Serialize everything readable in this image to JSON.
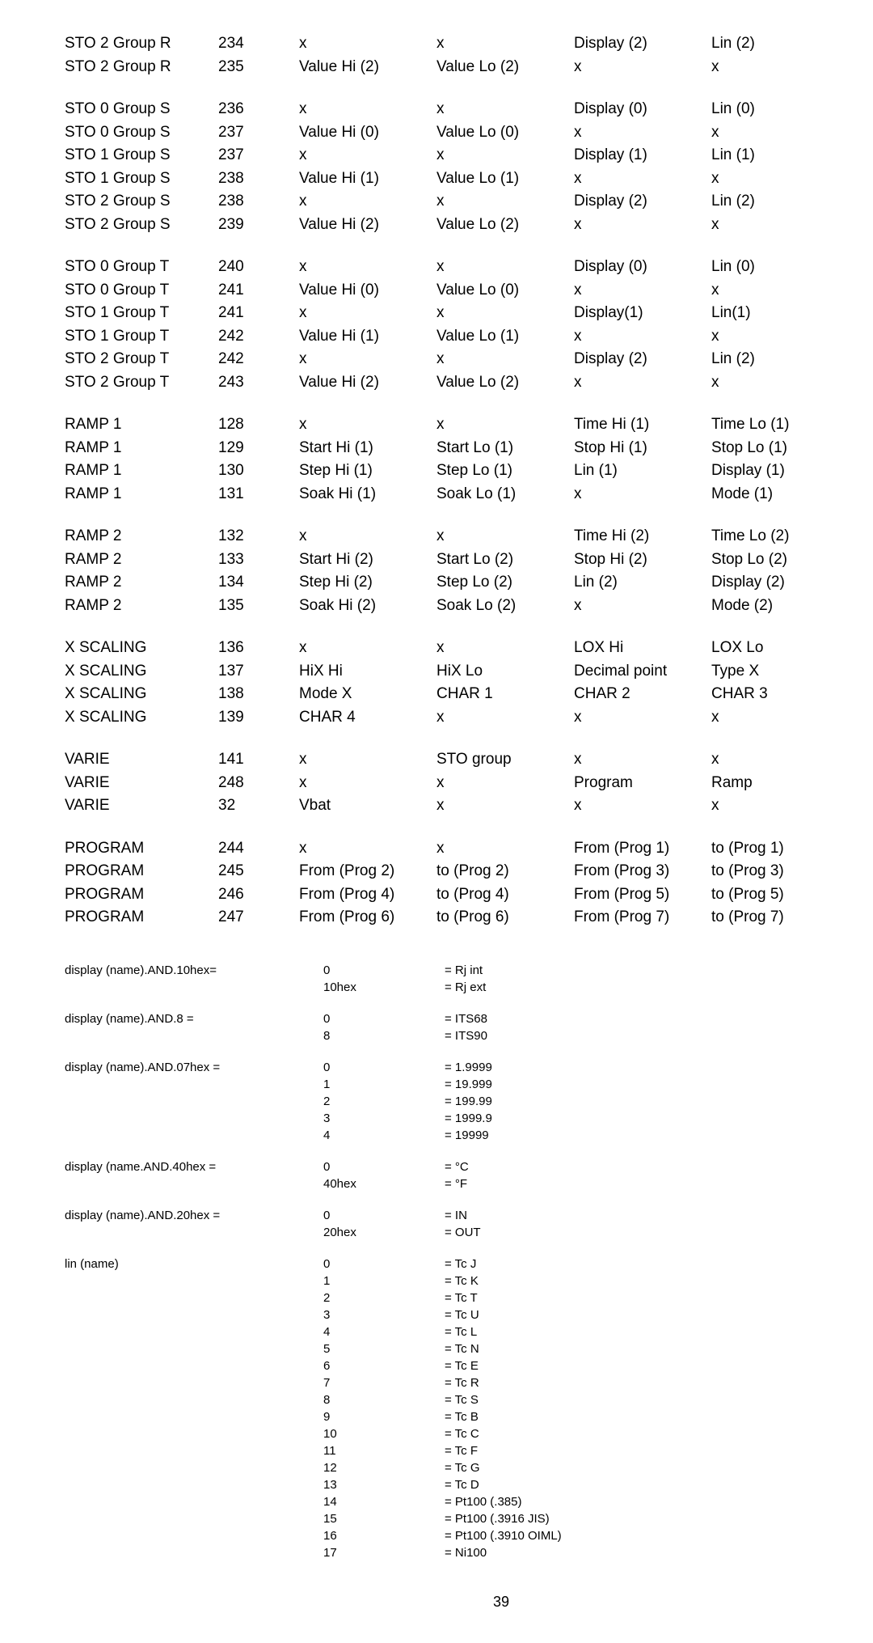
{
  "blocks": [
    [
      [
        "STO 2 Group R",
        "234",
        "x",
        "x",
        "Display (2)",
        "Lin (2)"
      ],
      [
        "STO 2 Group R",
        "235",
        "Value Hi (2)",
        "Value Lo (2)",
        "x",
        "x"
      ]
    ],
    [
      [
        "STO 0 Group S",
        "236",
        "x",
        "x",
        "Display (0)",
        "Lin (0)"
      ],
      [
        "STO 0 Group S",
        "237",
        "Value Hi (0)",
        "Value Lo (0)",
        "x",
        "x"
      ],
      [
        "STO 1 Group S",
        "237",
        "x",
        "x",
        "Display (1)",
        "Lin (1)"
      ],
      [
        "STO 1 Group S",
        "238",
        "Value Hi (1)",
        "Value Lo (1)",
        "x",
        "x"
      ],
      [
        "STO 2 Group S",
        "238",
        "x",
        "x",
        "Display (2)",
        "Lin (2)"
      ],
      [
        "STO 2 Group S",
        "239",
        "Value Hi (2)",
        "Value Lo (2)",
        "x",
        "x"
      ]
    ],
    [
      [
        "STO 0 Group T",
        "240",
        "x",
        "x",
        "Display (0)",
        "Lin (0)"
      ],
      [
        "STO 0 Group T",
        "241",
        "Value Hi (0)",
        "Value Lo (0)",
        "x",
        "x"
      ],
      [
        "STO 1 Group T",
        "241",
        "x",
        "x",
        "Display(1)",
        "Lin(1)"
      ],
      [
        "STO 1 Group T",
        "242",
        "Value Hi (1)",
        "Value Lo (1)",
        "x",
        "x"
      ],
      [
        "STO 2 Group T",
        "242",
        "x",
        "x",
        "Display (2)",
        "Lin (2)"
      ],
      [
        "STO 2 Group T",
        "243",
        "Value Hi (2)",
        "Value Lo (2)",
        "x",
        "x"
      ]
    ],
    [
      [
        "RAMP 1",
        "128",
        "x",
        "x",
        "Time Hi (1)",
        "Time Lo (1)"
      ],
      [
        "RAMP 1",
        "129",
        "Start Hi (1)",
        "Start  Lo (1)",
        "Stop Hi (1)",
        "Stop Lo (1)"
      ],
      [
        "RAMP 1",
        "130",
        "Step Hi (1)",
        "Step Lo (1)",
        "Lin (1)",
        "Display (1)"
      ],
      [
        "RAMP 1",
        "131",
        "Soak Hi (1)",
        "Soak Lo (1)",
        "x",
        "Mode (1)"
      ]
    ],
    [
      [
        "RAMP 2",
        "132",
        "x",
        "x",
        "Time Hi (2)",
        "Time Lo (2)"
      ],
      [
        "RAMP 2",
        "133",
        "Start Hi (2)",
        "Start Lo (2)",
        "Stop Hi (2)",
        "Stop Lo (2)"
      ],
      [
        "RAMP 2",
        "134",
        "Step Hi (2)",
        "Step Lo (2)",
        "Lin (2)",
        "Display (2)"
      ],
      [
        "RAMP 2",
        "135",
        "Soak Hi (2)",
        "Soak Lo (2)",
        "x",
        "Mode (2)"
      ]
    ],
    [
      [
        "X SCALING",
        "136",
        "x",
        "x",
        "LOX Hi",
        "LOX Lo"
      ],
      [
        "X SCALING",
        "137",
        "HiX Hi",
        "HiX Lo",
        "Decimal point",
        "Type X"
      ],
      [
        "X SCALING",
        "138",
        "Mode X",
        "CHAR 1",
        "CHAR 2",
        "CHAR 3"
      ],
      [
        "X SCALING",
        "139",
        "CHAR 4",
        "x",
        "x",
        "x"
      ]
    ],
    [
      [
        "VARIE",
        "141",
        "x",
        "STO group",
        "x",
        "x"
      ],
      [
        "VARIE",
        "248",
        "x",
        "x",
        "Program",
        "Ramp"
      ],
      [
        "VARIE",
        "32",
        "Vbat",
        "x",
        "x",
        "x"
      ]
    ],
    [
      [
        "PROGRAM",
        "244",
        "x",
        "x",
        "From  (Prog 1)",
        "to (Prog 1)"
      ],
      [
        "PROGRAM",
        "245",
        "From (Prog 2)",
        "to (Prog 2)",
        "From  (Prog 3)",
        "to (Prog 3)"
      ],
      [
        "PROGRAM",
        "246",
        "From (Prog 4)",
        "to (Prog 4)",
        "From  (Prog 5)",
        "to (Prog 5)"
      ],
      [
        "PROGRAM",
        "247",
        "From (Prog 6)",
        "to (Prog 6)",
        "From  (Prog 7)",
        "to (Prog 7)"
      ]
    ]
  ],
  "lookup": [
    {
      "label": "display (name).AND.10hex=",
      "rows": [
        [
          "0",
          "=  Rj int"
        ],
        [
          "10hex",
          "=  Rj ext"
        ]
      ]
    },
    {
      "label": "display (name).AND.8  =",
      "rows": [
        [
          "0",
          "=  ITS68"
        ],
        [
          "8",
          "=  ITS90"
        ]
      ]
    },
    {
      "label": "display (name).AND.07hex =",
      "rows": [
        [
          "0",
          "=  1.9999"
        ],
        [
          "1",
          "=  19.999"
        ],
        [
          "2",
          "=  199.99"
        ],
        [
          "3",
          "=  1999.9"
        ],
        [
          "4",
          "=  19999"
        ]
      ]
    },
    {
      "label": "display (name.AND.40hex =",
      "rows": [
        [
          "0",
          "=  °C"
        ],
        [
          "40hex",
          "=  °F"
        ]
      ]
    },
    {
      "label": "display (name).AND.20hex  =",
      "rows": [
        [
          "0",
          "=  IN"
        ],
        [
          "20hex",
          "=  OUT"
        ]
      ]
    },
    {
      "label": "lin (name)",
      "rows": [
        [
          "0",
          "=  Tc J"
        ],
        [
          "1",
          "=  Tc K"
        ],
        [
          "2",
          "=  Tc T"
        ],
        [
          "3",
          "=  Tc U"
        ],
        [
          "4",
          "=  Tc L"
        ],
        [
          "5",
          "=  Tc N"
        ],
        [
          "6",
          "=  Tc E"
        ],
        [
          "7",
          "=  Tc R"
        ],
        [
          "8",
          "=  Tc S"
        ],
        [
          "9",
          "=  Tc B"
        ],
        [
          "10",
          "=  Tc C"
        ],
        [
          "11",
          "=  Tc F"
        ],
        [
          "12",
          "=  Tc G"
        ],
        [
          "13",
          "=  Tc D"
        ],
        [
          "14",
          "=  Pt100 (.385)"
        ],
        [
          "15",
          "=  Pt100 (.3916 JIS)"
        ],
        [
          "16",
          "=  Pt100 (.3910 OIML)"
        ],
        [
          "17",
          "=  Ni100"
        ]
      ]
    }
  ],
  "page_number": "39"
}
